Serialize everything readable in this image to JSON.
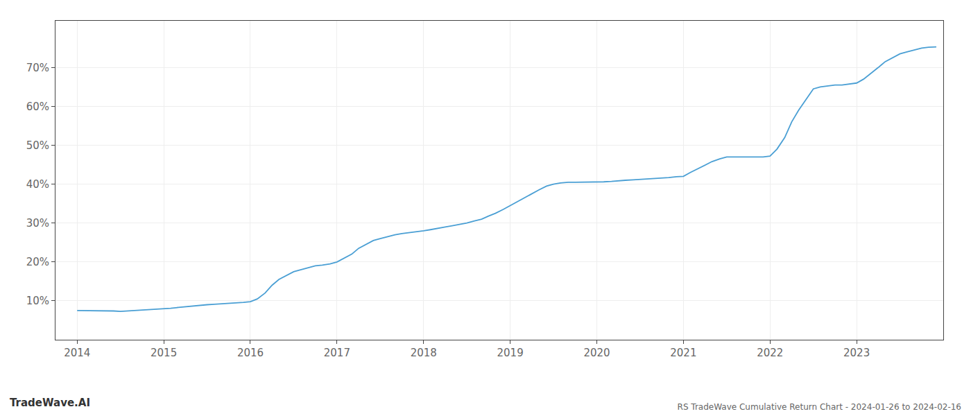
{
  "chart_data": {
    "type": "line",
    "title": "RS TradeWave Cumulative Return Chart - 2024-01-26 to 2024-02-16",
    "annotations": [
      "TradeWave.AI"
    ],
    "color": "#4a9fd4",
    "x": [
      2014.0,
      2014.08,
      2014.17,
      2014.25,
      2014.33,
      2014.42,
      2014.5,
      2014.58,
      2014.67,
      2014.75,
      2014.83,
      2014.92,
      2015.0,
      2015.08,
      2015.17,
      2015.25,
      2015.33,
      2015.42,
      2015.5,
      2015.58,
      2015.67,
      2015.75,
      2015.83,
      2015.92,
      2016.0,
      2016.08,
      2016.17,
      2016.25,
      2016.33,
      2016.42,
      2016.5,
      2016.58,
      2016.67,
      2016.75,
      2016.83,
      2016.92,
      2017.0,
      2017.08,
      2017.17,
      2017.25,
      2017.33,
      2017.42,
      2017.5,
      2017.58,
      2017.67,
      2017.75,
      2017.83,
      2017.92,
      2018.0,
      2018.08,
      2018.17,
      2018.25,
      2018.33,
      2018.42,
      2018.5,
      2018.58,
      2018.67,
      2018.75,
      2018.83,
      2018.92,
      2019.0,
      2019.08,
      2019.17,
      2019.25,
      2019.33,
      2019.42,
      2019.5,
      2019.58,
      2019.67,
      2019.75,
      2019.83,
      2019.92,
      2020.0,
      2020.08,
      2020.17,
      2020.25,
      2020.33,
      2020.42,
      2020.5,
      2020.58,
      2020.67,
      2020.75,
      2020.83,
      2020.92,
      2021.0,
      2021.08,
      2021.17,
      2021.25,
      2021.33,
      2021.42,
      2021.5,
      2021.58,
      2021.67,
      2021.75,
      2021.83,
      2021.92,
      2022.0,
      2022.08,
      2022.17,
      2022.25,
      2022.33,
      2022.42,
      2022.5,
      2022.58,
      2022.67,
      2022.75,
      2022.83,
      2022.92,
      2023.0,
      2023.08,
      2023.17,
      2023.25,
      2023.33,
      2023.42,
      2023.5,
      2023.58,
      2023.67,
      2023.75,
      2023.83,
      2023.92
    ],
    "values": [
      7.5,
      7.5,
      7.5,
      7.4,
      7.4,
      7.4,
      7.3,
      7.4,
      7.5,
      7.6,
      7.7,
      7.9,
      8.0,
      8.1,
      8.3,
      8.5,
      8.7,
      8.9,
      9.0,
      9.1,
      9.2,
      9.3,
      9.4,
      9.6,
      9.8,
      10.5,
      12.0,
      14.0,
      15.5,
      16.5,
      17.5,
      18.0,
      18.5,
      19.0,
      19.2,
      19.5,
      20.0,
      21.0,
      22.0,
      23.5,
      24.5,
      25.5,
      26.0,
      26.5,
      27.0,
      27.3,
      27.5,
      27.8,
      28.0,
      28.3,
      28.6,
      29.0,
      29.3,
      29.7,
      30.0,
      30.5,
      31.0,
      31.8,
      32.5,
      33.5,
      34.5,
      35.5,
      36.5,
      37.5,
      38.5,
      39.5,
      40.0,
      40.3,
      40.5,
      40.5,
      40.5,
      40.5,
      40.5,
      40.6,
      40.7,
      40.9,
      41.0,
      41.1,
      41.2,
      41.3,
      41.4,
      41.5,
      41.7,
      41.9,
      42.0,
      43.0,
      44.0,
      45.0,
      45.8,
      46.5,
      47.0,
      47.0,
      47.0,
      47.0,
      47.0,
      47.0,
      47.2,
      49.0,
      52.0,
      56.0,
      59.0,
      62.0,
      64.5,
      65.0,
      65.3,
      65.5,
      65.5,
      65.8,
      66.0,
      67.0,
      68.5,
      70.0,
      71.5,
      72.5,
      73.5,
      74.0,
      74.5,
      75.0,
      75.2,
      75.3
    ],
    "xlim": [
      2013.75,
      2024.0
    ],
    "ylim": [
      0,
      82
    ],
    "xticks": [
      2014,
      2015,
      2016,
      2017,
      2018,
      2019,
      2020,
      2021,
      2022,
      2023
    ],
    "yticks": [
      {
        "value": 10,
        "label": "10%"
      },
      {
        "value": 20,
        "label": "20%"
      },
      {
        "value": 30,
        "label": "30%"
      },
      {
        "value": 40,
        "label": "40%"
      },
      {
        "value": 50,
        "label": "50%"
      },
      {
        "value": 60,
        "label": "60%"
      },
      {
        "value": 70,
        "label": "70%"
      }
    ],
    "grid": true
  }
}
